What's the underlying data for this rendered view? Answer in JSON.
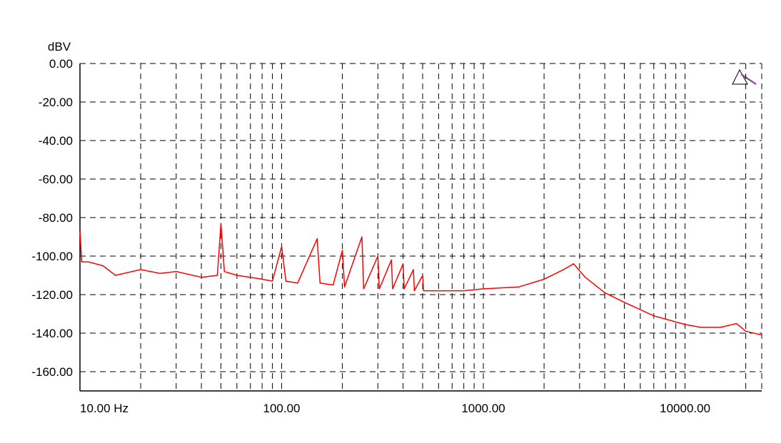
{
  "chart_data": {
    "type": "line",
    "y_label": "dBV",
    "xscale": "log",
    "grid": true,
    "xlim": [
      10,
      24000
    ],
    "ylim": [
      -170,
      0
    ],
    "xticks": [
      {
        "value": 10,
        "label": "10.00 Hz"
      },
      {
        "value": 100,
        "label": "100.00"
      },
      {
        "value": 1000,
        "label": "1000.00"
      },
      {
        "value": 10000,
        "label": "10000.00"
      }
    ],
    "xgrid": [
      20,
      30,
      40,
      50,
      60,
      70,
      80,
      90,
      200,
      300,
      400,
      500,
      600,
      700,
      800,
      900,
      2000,
      3000,
      4000,
      5000,
      6000,
      7000,
      8000,
      9000,
      20000
    ],
    "yticks": [
      {
        "value": 0,
        "label": "0.00"
      },
      {
        "value": -20,
        "label": "-20.00"
      },
      {
        "value": -40,
        "label": "-40.00"
      },
      {
        "value": -60,
        "label": "-60.00"
      },
      {
        "value": -80,
        "label": "-80.00"
      },
      {
        "value": -100,
        "label": "-100.00"
      },
      {
        "value": -120,
        "label": "-120.00"
      },
      {
        "value": -140,
        "label": "-140.00"
      },
      {
        "value": -160,
        "label": "-160.00"
      }
    ],
    "series": [
      {
        "color": "#ff0000",
        "x": [
          10,
          10.2,
          11,
          13,
          15,
          20,
          25,
          30,
          40,
          48,
          50,
          52,
          60,
          70,
          80,
          90,
          100,
          105,
          120,
          150,
          155,
          180,
          200,
          205,
          250,
          255,
          300,
          305,
          350,
          355,
          400,
          405,
          450,
          455,
          500,
          505,
          600,
          700,
          800,
          1000,
          1500,
          2000,
          2500,
          2800,
          3200,
          4000,
          5000,
          7000,
          10000,
          12000,
          15000,
          18000,
          20000,
          24000
        ],
        "values": [
          -87,
          -103,
          -103,
          -105,
          -110,
          -107,
          -109,
          -108,
          -111,
          -110,
          -83,
          -108,
          -110,
          -111,
          -112,
          -113,
          -95,
          -113,
          -114,
          -91,
          -114,
          -115,
          -97,
          -116,
          -90,
          -117,
          -100,
          -117,
          -102,
          -117,
          -104,
          -117,
          -107,
          -118,
          -110,
          -118,
          -118,
          -118,
          -118,
          -117,
          -116,
          -112,
          -107,
          -104,
          -111,
          -119,
          -124,
          -131,
          -135.5,
          -137,
          -137,
          -135,
          -139,
          -141
        ]
      }
    ]
  }
}
